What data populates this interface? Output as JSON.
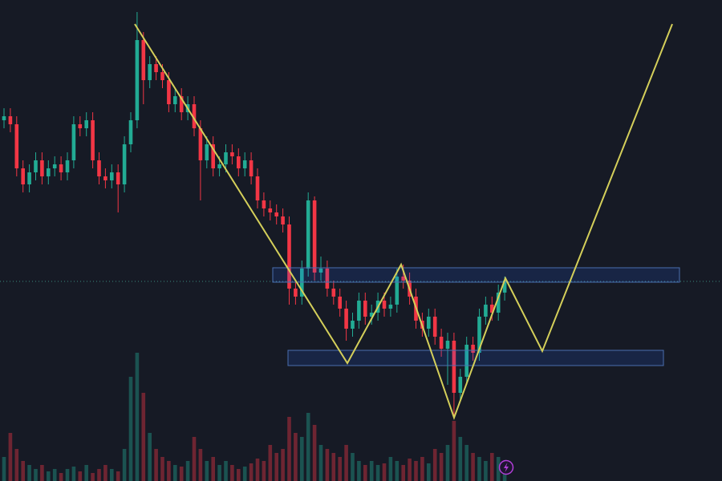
{
  "chart_data": {
    "type": "candlestick",
    "open": [
      450,
      455,
      445,
      390,
      370,
      385,
      400,
      380,
      390,
      395,
      385,
      400,
      445,
      440,
      450,
      400,
      380,
      375,
      385,
      370,
      420,
      450,
      550,
      500,
      520,
      510,
      500,
      470,
      480,
      460,
      470,
      440,
      400,
      420,
      390,
      395,
      410,
      405,
      390,
      400,
      380,
      350,
      340,
      335,
      330,
      320,
      240,
      230,
      265,
      350,
      260,
      265,
      240,
      230,
      215,
      190,
      200,
      225,
      205,
      210,
      225,
      215,
      220,
      255,
      250,
      230,
      200,
      190,
      205,
      180,
      165,
      175,
      110,
      130,
      170,
      160,
      205,
      220,
      210,
      235
    ],
    "high": [
      465,
      465,
      455,
      400,
      395,
      410,
      410,
      400,
      405,
      405,
      410,
      455,
      455,
      460,
      460,
      410,
      390,
      395,
      395,
      430,
      460,
      585,
      560,
      530,
      530,
      520,
      510,
      490,
      490,
      480,
      480,
      450,
      430,
      430,
      405,
      420,
      420,
      415,
      410,
      410,
      390,
      360,
      350,
      345,
      340,
      330,
      250,
      275,
      360,
      355,
      280,
      275,
      250,
      240,
      225,
      210,
      235,
      235,
      220,
      235,
      235,
      230,
      265,
      270,
      260,
      240,
      210,
      215,
      215,
      190,
      185,
      185,
      140,
      180,
      180,
      215,
      230,
      230,
      245,
      255
    ],
    "low": [
      440,
      435,
      380,
      360,
      360,
      375,
      370,
      370,
      380,
      375,
      375,
      390,
      430,
      430,
      390,
      370,
      365,
      365,
      335,
      360,
      410,
      440,
      470,
      490,
      500,
      490,
      460,
      460,
      450,
      450,
      430,
      350,
      390,
      380,
      380,
      385,
      395,
      380,
      380,
      370,
      340,
      330,
      325,
      320,
      310,
      220,
      220,
      220,
      255,
      250,
      250,
      230,
      220,
      205,
      175,
      180,
      190,
      195,
      195,
      200,
      205,
      205,
      210,
      240,
      220,
      190,
      180,
      180,
      170,
      155,
      120,
      80,
      100,
      120,
      150,
      150,
      195,
      200,
      200,
      225
    ],
    "close": [
      455,
      445,
      390,
      370,
      385,
      400,
      380,
      390,
      395,
      385,
      400,
      445,
      440,
      450,
      400,
      380,
      375,
      385,
      370,
      420,
      450,
      550,
      500,
      520,
      510,
      500,
      470,
      480,
      460,
      470,
      440,
      400,
      420,
      390,
      395,
      410,
      405,
      390,
      400,
      380,
      350,
      340,
      335,
      330,
      320,
      240,
      230,
      265,
      350,
      260,
      265,
      240,
      230,
      215,
      190,
      200,
      225,
      205,
      210,
      225,
      215,
      220,
      255,
      250,
      230,
      200,
      190,
      205,
      180,
      165,
      175,
      110,
      130,
      170,
      160,
      205,
      220,
      210,
      235,
      250
    ],
    "volume": [
      30,
      60,
      40,
      25,
      20,
      15,
      20,
      12,
      15,
      10,
      15,
      18,
      12,
      20,
      10,
      15,
      20,
      15,
      12,
      40,
      130,
      160,
      110,
      60,
      40,
      30,
      25,
      20,
      18,
      25,
      55,
      40,
      25,
      30,
      20,
      25,
      20,
      15,
      18,
      22,
      28,
      25,
      45,
      35,
      40,
      80,
      60,
      55,
      85,
      70,
      45,
      40,
      35,
      30,
      45,
      35,
      25,
      20,
      25,
      20,
      22,
      30,
      25,
      20,
      28,
      25,
      30,
      22,
      40,
      35,
      45,
      75,
      55,
      45,
      35,
      30,
      25,
      35,
      30,
      25
    ],
    "ylim": [
      0,
      600
    ],
    "volume_lim": [
      0,
      600
    ],
    "up_color": "#22ab94",
    "down_color": "#f23645"
  }
}
